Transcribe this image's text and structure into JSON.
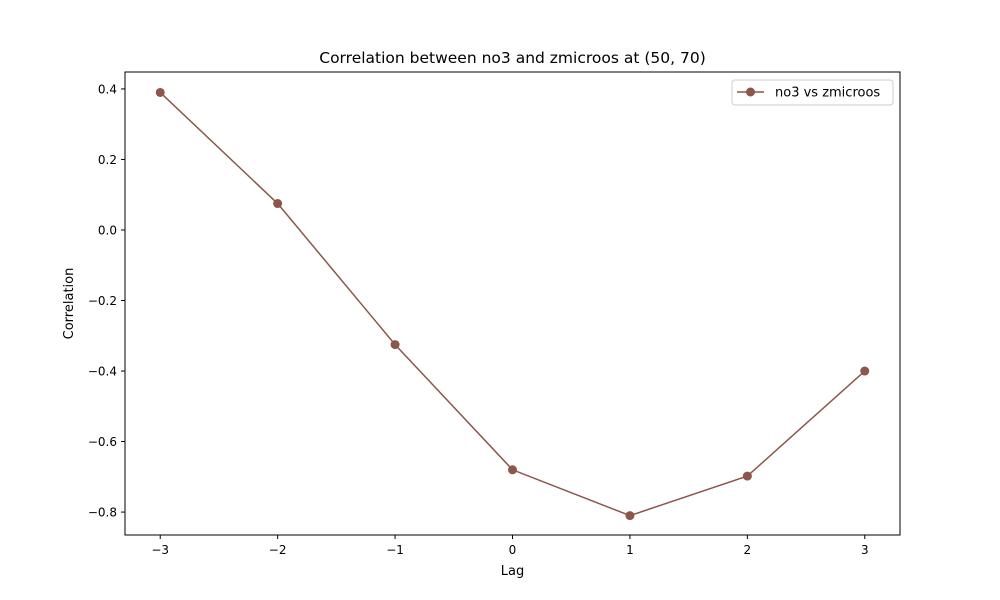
{
  "chart_data": {
    "type": "line",
    "title": "Correlation between no3 and zmicroos at (50, 70)",
    "xlabel": "Lag",
    "ylabel": "Correlation",
    "xlim": [
      -3.3,
      3.3
    ],
    "ylim": [
      -0.865,
      0.448
    ],
    "xticks": [
      -3,
      -2,
      -1,
      0,
      1,
      2,
      3
    ],
    "xtick_labels": [
      "−3",
      "−2",
      "−1",
      "0",
      "1",
      "2",
      "3"
    ],
    "yticks": [
      0.4,
      0.2,
      0.0,
      -0.2,
      -0.4,
      -0.6,
      -0.8
    ],
    "ytick_labels": [
      "0.4",
      "0.2",
      "0.0",
      "−0.2",
      "−0.4",
      "−0.6",
      "−0.8"
    ],
    "grid": false,
    "legend_position": "upper right",
    "series": [
      {
        "name": "no3 vs zmicroos",
        "color": "#8c564b",
        "marker": "circle",
        "x": [
          -3,
          -2,
          -1,
          0,
          1,
          2,
          3
        ],
        "y": [
          0.39,
          0.075,
          -0.325,
          -0.68,
          -0.81,
          -0.698,
          -0.4
        ]
      }
    ]
  }
}
